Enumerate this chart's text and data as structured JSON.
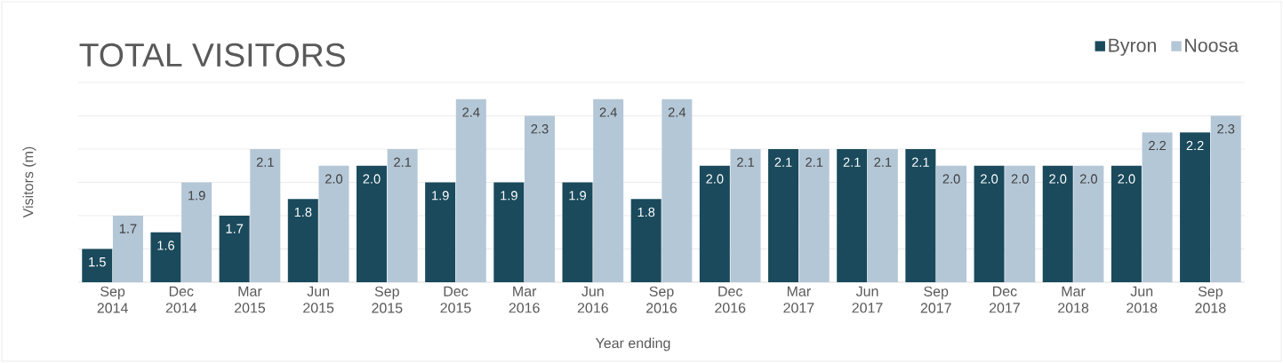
{
  "chart_data": {
    "type": "bar",
    "title": "TOTAL VISITORS",
    "xlabel": "Year ending",
    "ylabel": "Visitors (m)",
    "categories": [
      "Sep 2014",
      "Dec 2014",
      "Mar 2015",
      "Jun 2015",
      "Sep 2015",
      "Dec 2015",
      "Mar 2016",
      "Jun 2016",
      "Sep 2016",
      "Dec 2016",
      "Mar 2017",
      "Jun 2017",
      "Sep 2017",
      "Dec 2017",
      "Mar 2018",
      "Jun 2018",
      "Sep 2018"
    ],
    "series": [
      {
        "name": "Byron",
        "color": "#1a4a5c",
        "values": [
          1.5,
          1.6,
          1.7,
          1.8,
          2.0,
          1.9,
          1.9,
          1.9,
          1.8,
          2.0,
          2.1,
          2.1,
          2.1,
          2.0,
          2.0,
          2.0,
          2.2
        ],
        "value_labels": [
          "1.5",
          "1.6",
          "1.7",
          "1.8",
          "2.0",
          "1.9",
          "1.9",
          "1.9",
          "1.8",
          "2.0",
          "2.1",
          "2.1",
          "2.1",
          "2.0",
          "2.0",
          "2.0",
          "2.2"
        ]
      },
      {
        "name": "Noosa",
        "color": "#b4c7d7",
        "values": [
          1.7,
          1.9,
          2.1,
          2.0,
          2.1,
          2.4,
          2.3,
          2.4,
          2.4,
          2.1,
          2.1,
          2.1,
          2.0,
          2.0,
          2.0,
          2.2,
          2.3
        ],
        "value_labels": [
          "1.7",
          "1.9",
          "2.1",
          "2.0",
          "2.1",
          "2.4",
          "2.3",
          "2.4",
          "2.4",
          "2.1",
          "2.1",
          "2.1",
          "2.0",
          "2.0",
          "2.0",
          "2.2",
          "2.3"
        ]
      }
    ],
    "ylim": [
      1.3,
      2.5
    ],
    "yticks": [
      {
        "value": 1.3,
        "label": null
      },
      {
        "value": 1.5,
        "label": null
      },
      {
        "value": 1.7,
        "label": null
      },
      {
        "value": 1.9,
        "label": null
      },
      {
        "value": 2.1,
        "label": null
      },
      {
        "value": 2.3,
        "label": null
      },
      {
        "value": 2.5,
        "label": null
      }
    ],
    "grid": "y",
    "legend": "top right"
  }
}
